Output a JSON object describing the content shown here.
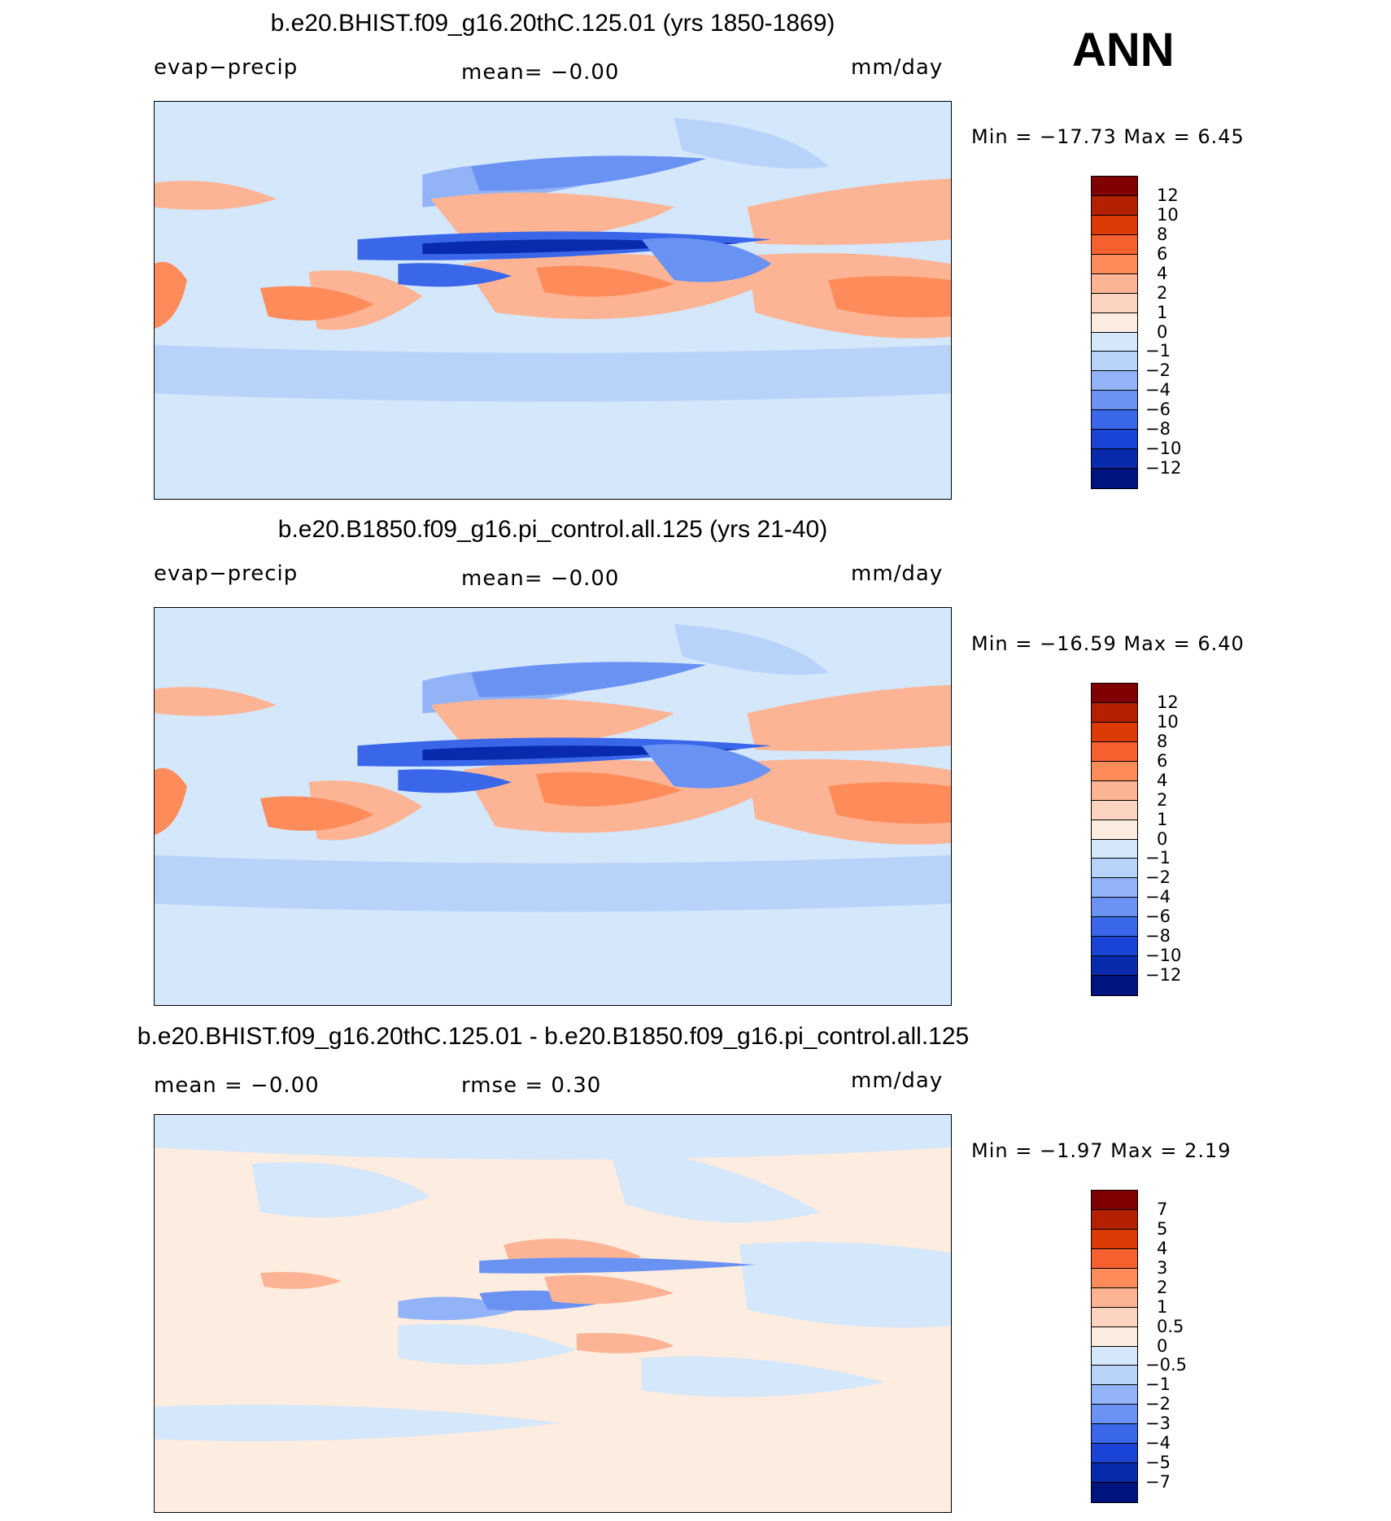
{
  "season": "ANN",
  "chart_data": [
    {
      "type": "heatmap",
      "title": "b.e20.BHIST.f09_g16.20thC.125.01 (yrs 1850-1869)",
      "left_label": "evap−precip",
      "center_label": "mean=   −0.00",
      "units": "mm/day",
      "minmax": "Min  =  −17.73  Max  =     6.45",
      "colorbar": {
        "levels": [
          "12",
          "10",
          "8",
          "6",
          "4",
          "2",
          "1",
          "0",
          "−1",
          "−2",
          "−4",
          "−6",
          "−8",
          "−10",
          "−12"
        ],
        "colors": [
          "#800000",
          "#b32100",
          "#dd3b06",
          "#f5602e",
          "#fd8c5a",
          "#fcb495",
          "#fdd4bf",
          "#fdece0",
          "#d4e7fb",
          "#b8d3fa",
          "#92b3f7",
          "#6a92f3",
          "#3a67ea",
          "#1a44d6",
          "#0a2aad",
          "#001480"
        ]
      }
    },
    {
      "type": "heatmap",
      "title": "b.e20.B1850.f09_g16.pi_control.all.125 (yrs 21-40)",
      "left_label": "evap−precip",
      "center_label": "mean=   −0.00",
      "units": "mm/day",
      "minmax": "Min  =  −16.59  Max  =     6.40",
      "colorbar": {
        "levels": [
          "12",
          "10",
          "8",
          "6",
          "4",
          "2",
          "1",
          "0",
          "−1",
          "−2",
          "−4",
          "−6",
          "−8",
          "−10",
          "−12"
        ],
        "colors": [
          "#800000",
          "#b32100",
          "#dd3b06",
          "#f5602e",
          "#fd8c5a",
          "#fcb495",
          "#fdd4bf",
          "#fdece0",
          "#d4e7fb",
          "#b8d3fa",
          "#92b3f7",
          "#6a92f3",
          "#3a67ea",
          "#1a44d6",
          "#0a2aad",
          "#001480"
        ]
      }
    },
    {
      "type": "heatmap",
      "title": "b.e20.BHIST.f09_g16.20thC.125.01 - b.e20.B1850.f09_g16.pi_control.all.125",
      "left_label": "mean  =    −0.00",
      "center_label": "rmse  =     0.30",
      "units": "mm/day",
      "minmax": "Min  =    −1.97  Max  =     2.19",
      "colorbar": {
        "levels": [
          "7",
          "5",
          "4",
          "3",
          "2",
          "1",
          "0.5",
          "0",
          "−0.5",
          "−1",
          "−2",
          "−3",
          "−4",
          "−5",
          "−7"
        ],
        "colors": [
          "#800000",
          "#b32100",
          "#dd3b06",
          "#f5602e",
          "#fd8c5a",
          "#fcb495",
          "#fdd4bf",
          "#fdece0",
          "#d4e7fb",
          "#b8d3fa",
          "#92b3f7",
          "#6a92f3",
          "#3a67ea",
          "#1a44d6",
          "#0a2aad",
          "#001480"
        ]
      }
    }
  ]
}
